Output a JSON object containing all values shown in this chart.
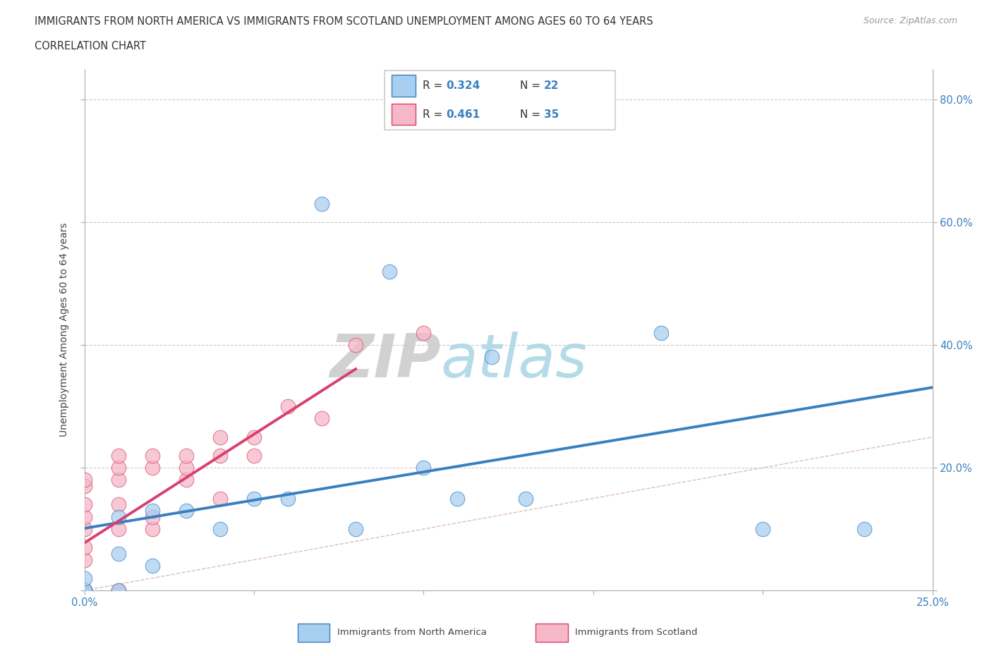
{
  "title_line1": "IMMIGRANTS FROM NORTH AMERICA VS IMMIGRANTS FROM SCOTLAND UNEMPLOYMENT AMONG AGES 60 TO 64 YEARS",
  "title_line2": "CORRELATION CHART",
  "source": "Source: ZipAtlas.com",
  "ylabel": "Unemployment Among Ages 60 to 64 years",
  "xlim": [
    0.0,
    0.25
  ],
  "ylim": [
    0.0,
    0.85
  ],
  "xticks": [
    0.0,
    0.05,
    0.1,
    0.15,
    0.2,
    0.25
  ],
  "xticklabels": [
    "0.0%",
    "",
    "",
    "",
    "",
    "25.0%"
  ],
  "yticks": [
    0.0,
    0.2,
    0.4,
    0.6,
    0.8
  ],
  "yticklabels": [
    "",
    "20.0%",
    "40.0%",
    "60.0%",
    "80.0%"
  ],
  "R_blue": 0.324,
  "N_blue": 22,
  "R_pink": 0.461,
  "N_pink": 35,
  "color_blue": "#A8CFF0",
  "color_pink": "#F5B8C8",
  "color_blue_line": "#3A7FC1",
  "color_pink_line": "#D94070",
  "color_grid": "#CCCCCC",
  "color_diag": "#DDBBBB",
  "watermark_zip": "ZIP",
  "watermark_atlas": "atlas",
  "legend_label_blue": "Immigrants from North America",
  "legend_label_pink": "Immigrants from Scotland",
  "north_america_x": [
    0.0,
    0.0,
    0.0,
    0.01,
    0.01,
    0.01,
    0.02,
    0.02,
    0.03,
    0.04,
    0.05,
    0.06,
    0.07,
    0.08,
    0.09,
    0.1,
    0.11,
    0.12,
    0.13,
    0.17,
    0.2,
    0.23
  ],
  "north_america_y": [
    0.0,
    0.0,
    0.02,
    0.0,
    0.06,
    0.12,
    0.04,
    0.13,
    0.13,
    0.1,
    0.15,
    0.15,
    0.63,
    0.1,
    0.52,
    0.2,
    0.15,
    0.38,
    0.15,
    0.42,
    0.1,
    0.1
  ],
  "scotland_x": [
    0.0,
    0.0,
    0.0,
    0.0,
    0.0,
    0.0,
    0.0,
    0.0,
    0.0,
    0.0,
    0.0,
    0.0,
    0.0,
    0.01,
    0.01,
    0.01,
    0.01,
    0.01,
    0.01,
    0.02,
    0.02,
    0.02,
    0.02,
    0.03,
    0.03,
    0.03,
    0.04,
    0.04,
    0.04,
    0.05,
    0.05,
    0.06,
    0.07,
    0.08,
    0.1
  ],
  "scotland_y": [
    0.0,
    0.0,
    0.0,
    0.0,
    0.0,
    0.0,
    0.05,
    0.07,
    0.1,
    0.12,
    0.14,
    0.17,
    0.18,
    0.0,
    0.1,
    0.14,
    0.18,
    0.2,
    0.22,
    0.1,
    0.12,
    0.2,
    0.22,
    0.18,
    0.2,
    0.22,
    0.15,
    0.22,
    0.25,
    0.22,
    0.25,
    0.3,
    0.28,
    0.4,
    0.42
  ]
}
